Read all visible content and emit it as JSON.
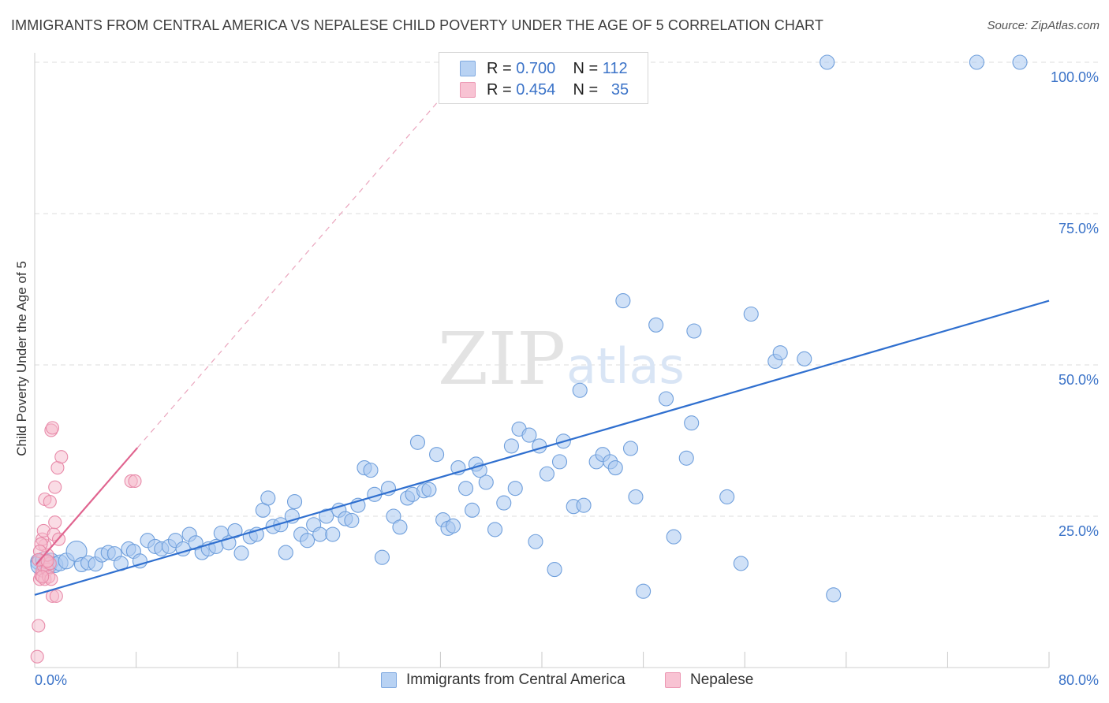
{
  "header": {
    "title": "IMMIGRANTS FROM CENTRAL AMERICA VS NEPALESE CHILD POVERTY UNDER THE AGE OF 5 CORRELATION CHART",
    "source": "Source: ZipAtlas.com"
  },
  "watermark": {
    "zip": "ZIP",
    "atlas": "atlas"
  },
  "legend": {
    "series1": {
      "r_label": "R = ",
      "r_value": "0.700",
      "n_label": "N = ",
      "n_value": "112"
    },
    "series2": {
      "r_label": "R = ",
      "r_value": "0.454",
      "n_label": "N = ",
      "n_value": "35"
    }
  },
  "colors": {
    "blue_fill": "#a9c8f0",
    "blue_stroke": "#6f9fdc",
    "blue_line": "#2f6fcf",
    "pink_fill": "#f6b9cc",
    "pink_stroke": "#e88aa9",
    "pink_line": "#e0648f",
    "axis_text": "#3b73c8",
    "grid": "#dcdcdc"
  },
  "chart_data": {
    "type": "scatter",
    "title": "IMMIGRANTS FROM CENTRAL AMERICA VS NEPALESE CHILD POVERTY UNDER THE AGE OF 5 CORRELATION CHART",
    "xlabel": "",
    "ylabel": "Child Poverty Under the Age of 5",
    "xlim": [
      0,
      80
    ],
    "ylim": [
      0,
      105
    ],
    "x_tick_labels": [
      "0.0%",
      "80.0%"
    ],
    "y_ticks": [
      25,
      50,
      75,
      100
    ],
    "y_tick_labels": [
      "25.0%",
      "50.0%",
      "75.0%",
      "100.0%"
    ],
    "grid": true,
    "legend_position": "top-center",
    "series": [
      {
        "name": "Immigrants from Central America",
        "r": 0.7,
        "n": 112,
        "trend": {
          "x": [
            0,
            80
          ],
          "y": [
            12.0,
            60.6
          ]
        },
        "points": [
          [
            0.3,
            17.5
          ],
          [
            0.5,
            17.0
          ],
          [
            0.7,
            17.8
          ],
          [
            0.9,
            17.2
          ],
          [
            1.1,
            16.8
          ],
          [
            1.3,
            17.6
          ],
          [
            1.6,
            17.0
          ],
          [
            2.0,
            17.3
          ],
          [
            2.5,
            17.6
          ],
          [
            3.3,
            19.2
          ],
          [
            3.7,
            17.0
          ],
          [
            4.2,
            17.3
          ],
          [
            4.8,
            17.1
          ],
          [
            5.3,
            18.6
          ],
          [
            5.8,
            19.0
          ],
          [
            6.3,
            18.8
          ],
          [
            6.8,
            17.2
          ],
          [
            7.4,
            19.6
          ],
          [
            7.8,
            19.2
          ],
          [
            8.3,
            17.6
          ],
          [
            8.9,
            21.0
          ],
          [
            9.5,
            20.0
          ],
          [
            10.0,
            19.6
          ],
          [
            10.6,
            20.0
          ],
          [
            11.1,
            21.0
          ],
          [
            11.7,
            19.6
          ],
          [
            12.2,
            22.0
          ],
          [
            12.7,
            20.6
          ],
          [
            13.2,
            19.0
          ],
          [
            13.7,
            19.6
          ],
          [
            14.3,
            20.0
          ],
          [
            14.7,
            22.2
          ],
          [
            15.3,
            20.6
          ],
          [
            15.8,
            22.6
          ],
          [
            16.3,
            18.9
          ],
          [
            17.0,
            21.6
          ],
          [
            17.5,
            22.0
          ],
          [
            18.0,
            26.0
          ],
          [
            18.4,
            28.0
          ],
          [
            18.8,
            23.3
          ],
          [
            19.4,
            23.6
          ],
          [
            19.8,
            19.0
          ],
          [
            20.3,
            25.0
          ],
          [
            20.5,
            27.4
          ],
          [
            21.0,
            22.0
          ],
          [
            21.5,
            21.0
          ],
          [
            22.0,
            23.6
          ],
          [
            22.5,
            22.0
          ],
          [
            23.0,
            25.0
          ],
          [
            23.5,
            22.0
          ],
          [
            24.0,
            26.0
          ],
          [
            24.5,
            24.6
          ],
          [
            25.0,
            24.3
          ],
          [
            25.5,
            26.8
          ],
          [
            26.0,
            33.0
          ],
          [
            26.5,
            32.6
          ],
          [
            26.8,
            28.6
          ],
          [
            27.4,
            18.2
          ],
          [
            27.9,
            29.6
          ],
          [
            28.3,
            25.0
          ],
          [
            28.8,
            23.2
          ],
          [
            29.4,
            28.0
          ],
          [
            29.8,
            28.6
          ],
          [
            30.2,
            37.2
          ],
          [
            30.7,
            29.2
          ],
          [
            31.1,
            29.4
          ],
          [
            31.7,
            35.2
          ],
          [
            32.2,
            24.4
          ],
          [
            32.6,
            23.0
          ],
          [
            33.0,
            23.4
          ],
          [
            33.4,
            33.0
          ],
          [
            34.0,
            29.6
          ],
          [
            34.5,
            26.0
          ],
          [
            34.8,
            33.6
          ],
          [
            35.1,
            32.6
          ],
          [
            35.6,
            30.6
          ],
          [
            36.3,
            22.8
          ],
          [
            37.0,
            27.2
          ],
          [
            37.6,
            36.6
          ],
          [
            37.9,
            29.6
          ],
          [
            38.2,
            39.4
          ],
          [
            39.0,
            38.4
          ],
          [
            39.5,
            20.8
          ],
          [
            39.8,
            36.6
          ],
          [
            40.4,
            32.0
          ],
          [
            41.0,
            16.2
          ],
          [
            41.4,
            34.0
          ],
          [
            41.7,
            37.4
          ],
          [
            42.5,
            26.6
          ],
          [
            43.0,
            45.8
          ],
          [
            43.3,
            26.8
          ],
          [
            44.3,
            34.0
          ],
          [
            44.8,
            35.2
          ],
          [
            45.4,
            34.0
          ],
          [
            45.8,
            33.0
          ],
          [
            46.4,
            60.6
          ],
          [
            47.0,
            36.2
          ],
          [
            47.4,
            28.2
          ],
          [
            48.0,
            12.6
          ],
          [
            49.0,
            56.6
          ],
          [
            49.8,
            44.4
          ],
          [
            50.4,
            21.6
          ],
          [
            51.4,
            34.6
          ],
          [
            51.8,
            40.4
          ],
          [
            52.0,
            55.6
          ],
          [
            54.6,
            28.2
          ],
          [
            55.7,
            17.2
          ],
          [
            56.5,
            58.4
          ],
          [
            58.4,
            50.6
          ],
          [
            58.8,
            52.0
          ],
          [
            60.7,
            51.0
          ],
          [
            63.0,
            12.0
          ],
          [
            62.5,
            100.0
          ],
          [
            74.3,
            100.0
          ],
          [
            77.7,
            100.0
          ]
        ]
      },
      {
        "name": "Nepalese",
        "r": 0.454,
        "n": 35,
        "trend": {
          "x": [
            0.1,
            8.1
          ],
          "y": [
            17.0,
            36.3
          ]
        },
        "points": [
          [
            0.2,
            1.8
          ],
          [
            0.3,
            6.9
          ],
          [
            0.4,
            14.6
          ],
          [
            0.5,
            15.2
          ],
          [
            0.6,
            16.0
          ],
          [
            0.7,
            16.8
          ],
          [
            0.8,
            14.6
          ],
          [
            0.9,
            17.4
          ],
          [
            1.0,
            16.2
          ],
          [
            1.1,
            15.0
          ],
          [
            1.2,
            17.2
          ],
          [
            1.0,
            18.6
          ],
          [
            0.8,
            20.2
          ],
          [
            0.6,
            21.2
          ],
          [
            0.5,
            20.4
          ],
          [
            0.4,
            19.2
          ],
          [
            0.7,
            22.6
          ],
          [
            1.3,
            14.6
          ],
          [
            1.4,
            11.8
          ],
          [
            1.5,
            22.0
          ],
          [
            1.6,
            24.0
          ],
          [
            0.8,
            27.8
          ],
          [
            1.2,
            27.4
          ],
          [
            1.6,
            29.8
          ],
          [
            1.8,
            33.0
          ],
          [
            2.1,
            34.8
          ],
          [
            1.3,
            39.2
          ],
          [
            1.4,
            39.6
          ],
          [
            1.7,
            11.8
          ],
          [
            1.9,
            21.2
          ],
          [
            7.6,
            30.8
          ],
          [
            7.9,
            30.8
          ],
          [
            0.3,
            17.8
          ],
          [
            1.0,
            17.6
          ],
          [
            0.6,
            15.0
          ]
        ]
      }
    ]
  },
  "bottom_legend": {
    "series1_label": "Immigrants from Central America",
    "series2_label": "Nepalese"
  }
}
